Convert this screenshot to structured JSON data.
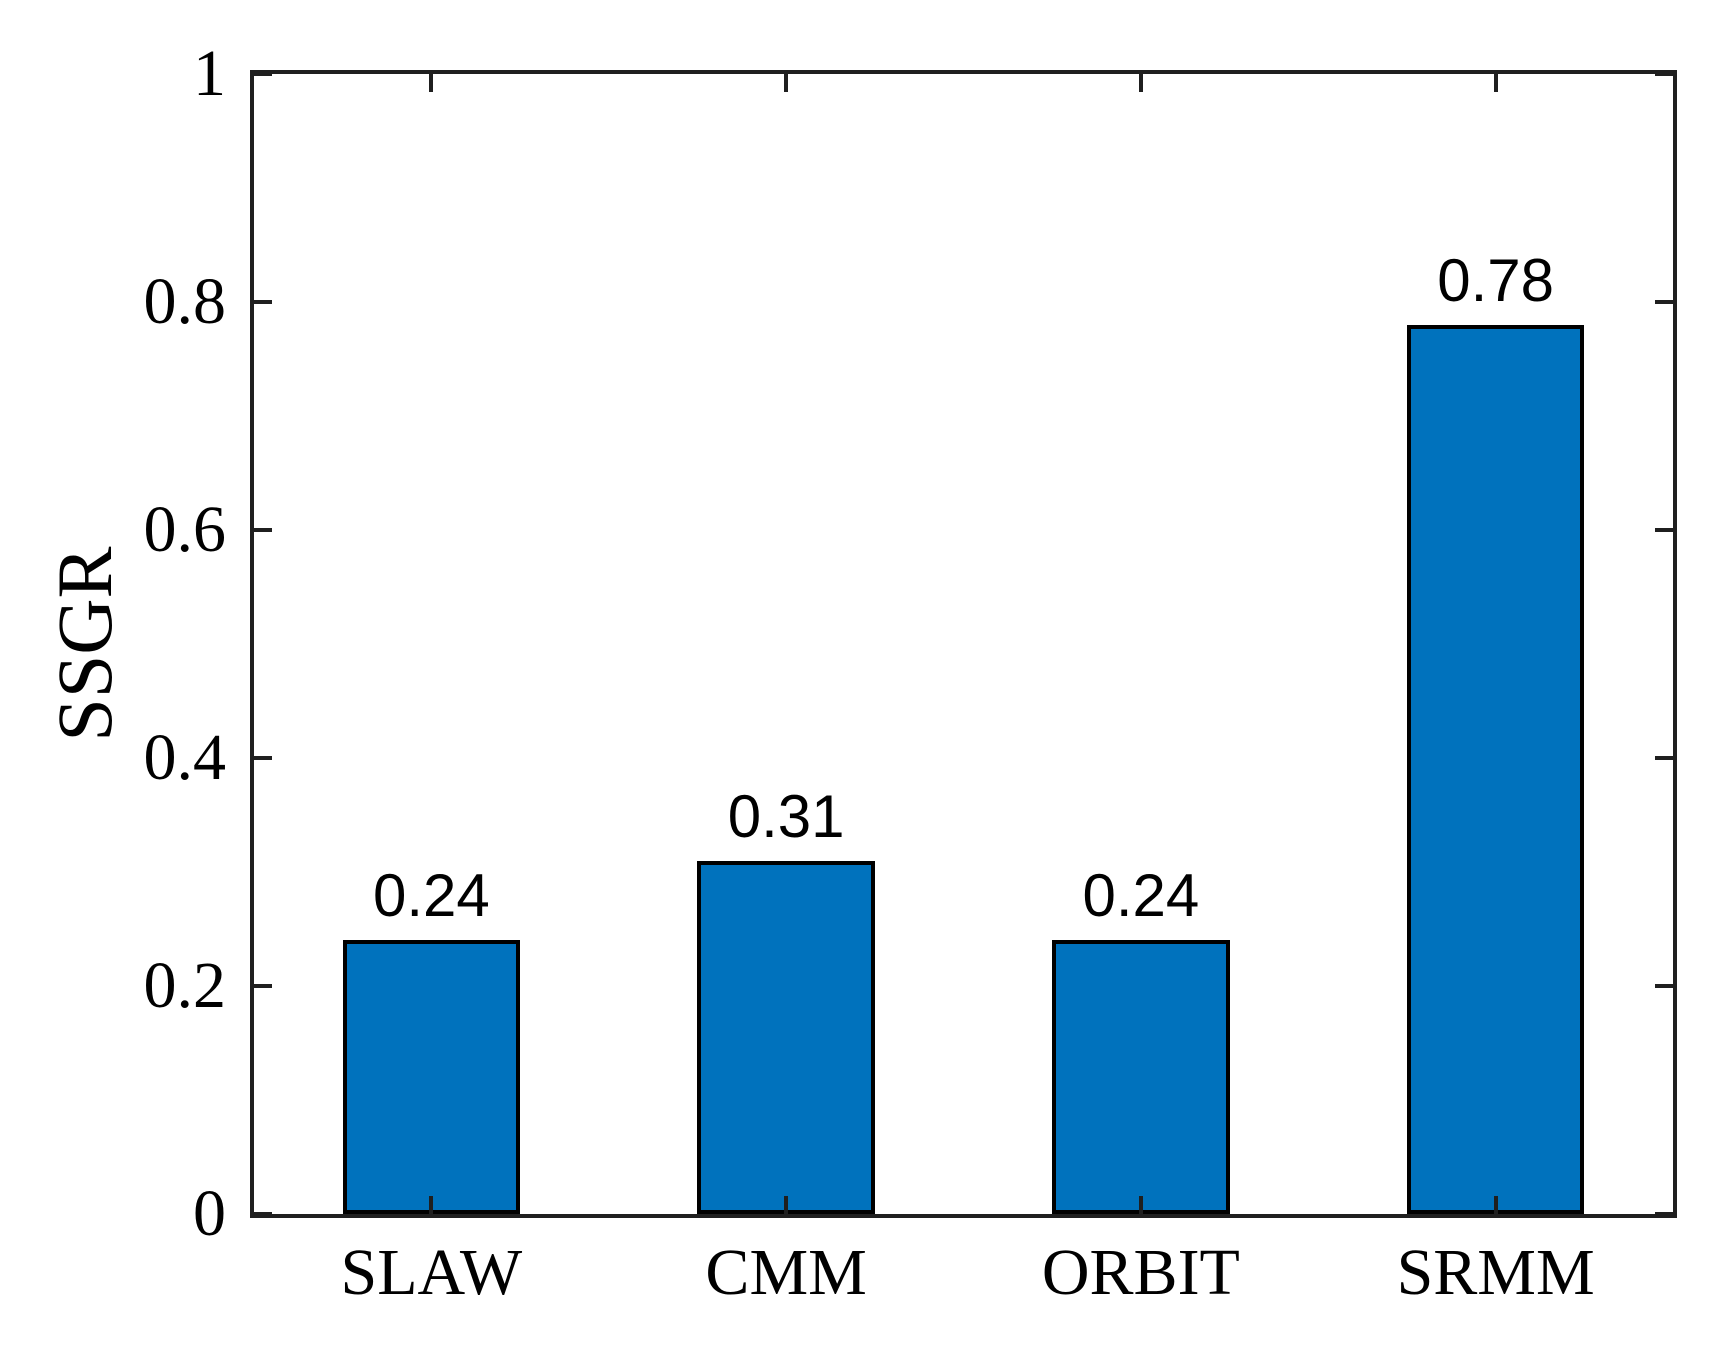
{
  "chart_data": {
    "type": "bar",
    "title": "",
    "xlabel": "",
    "ylabel": "SSGR",
    "categories": [
      "SLAW",
      "CMM",
      "ORBIT",
      "SRMM"
    ],
    "values": [
      0.24,
      0.31,
      0.24,
      0.78
    ],
    "bar_value_labels": [
      "0.24",
      "0.31",
      "0.24",
      "0.78"
    ],
    "ylim": [
      0,
      1
    ],
    "yticks": [
      0,
      0.2,
      0.4,
      0.6,
      0.8,
      1
    ],
    "ytick_labels": [
      "0",
      "0.2",
      "0.4",
      "0.6",
      "0.8",
      "1"
    ],
    "grid": false,
    "legend_position": "none",
    "box": true,
    "tick_direction": "in",
    "bar_width_fraction": 0.5,
    "colors": {
      "bar_fill": "#0072BD",
      "bar_edge": "#000000",
      "axis": "#1F1F1F",
      "text": "#000000",
      "background": "#FFFFFF"
    }
  }
}
